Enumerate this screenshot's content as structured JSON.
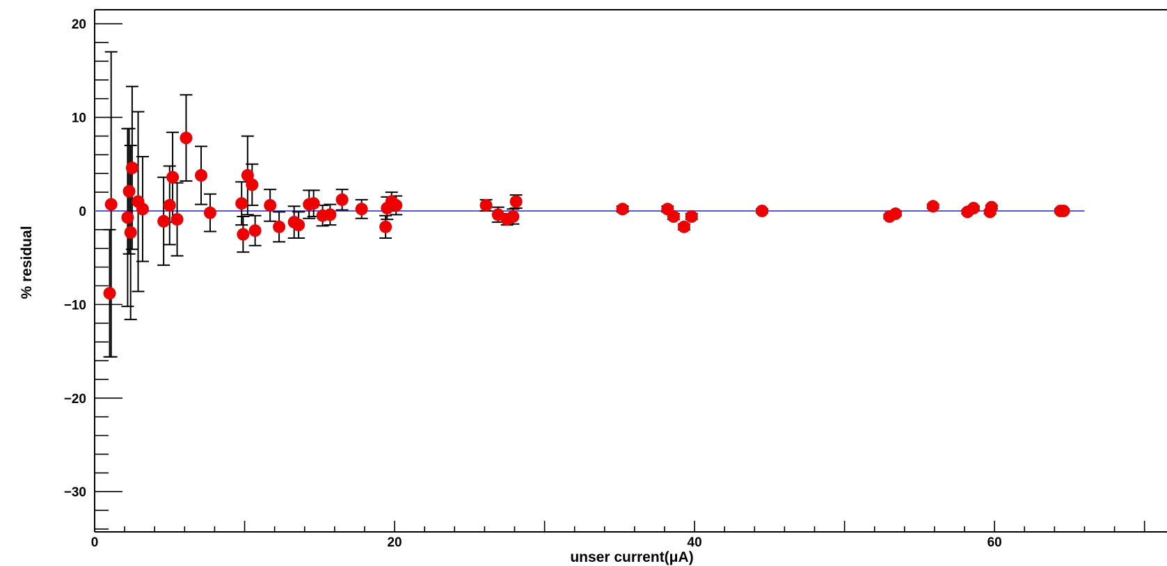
{
  "chart_data": {
    "type": "scatter",
    "title": "",
    "xlabel": "unser current(μA)",
    "ylabel": "% residual",
    "xlim": [
      0,
      71.5
    ],
    "ylim": [
      -34.3,
      21.5
    ],
    "x_ticks": [
      0,
      20,
      40,
      60
    ],
    "y_ticks": [
      20,
      10,
      0,
      -10,
      -20,
      -30
    ],
    "x_tick_labels": [
      "0",
      "20",
      "40",
      "60"
    ],
    "y_tick_labels": [
      "20",
      "10",
      "0",
      "−10",
      "−20",
      "−30"
    ],
    "grid": false,
    "legend": "none",
    "reference_line": {
      "y": 0,
      "x_range": [
        0,
        66
      ],
      "color": "#5555ee"
    },
    "colors": {
      "marker": "#ee0000",
      "error_bar": "#000000",
      "axis": "#000000"
    },
    "series": [
      {
        "points": [
          {
            "x": 1.0,
            "y": -8.8,
            "err": 6.8
          },
          {
            "x": 1.1,
            "y": 0.7,
            "err": 16.3
          },
          {
            "x": 2.2,
            "y": -0.7,
            "err": 9.5
          },
          {
            "x": 2.3,
            "y": 2.1,
            "err": 6.7
          },
          {
            "x": 2.4,
            "y": -2.3,
            "err": 9.3
          },
          {
            "x": 2.5,
            "y": 4.6,
            "err": 8.7
          },
          {
            "x": 2.9,
            "y": 1.0,
            "err": 9.6
          },
          {
            "x": 3.2,
            "y": 0.2,
            "err": 5.6
          },
          {
            "x": 4.6,
            "y": -1.1,
            "err": 4.7
          },
          {
            "x": 5.0,
            "y": 0.6,
            "err": 4.2
          },
          {
            "x": 5.2,
            "y": 3.6,
            "err": 4.8
          },
          {
            "x": 5.5,
            "y": -0.9,
            "err": 3.9
          },
          {
            "x": 6.1,
            "y": 7.8,
            "err": 4.6
          },
          {
            "x": 7.1,
            "y": 3.8,
            "err": 3.1
          },
          {
            "x": 7.7,
            "y": -0.2,
            "err": 2.0
          },
          {
            "x": 9.8,
            "y": 0.8,
            "err": 2.3
          },
          {
            "x": 9.9,
            "y": -2.5,
            "err": 1.9
          },
          {
            "x": 10.2,
            "y": 3.8,
            "err": 4.2
          },
          {
            "x": 10.5,
            "y": 2.8,
            "err": 2.2
          },
          {
            "x": 10.7,
            "y": -2.1,
            "err": 1.6
          },
          {
            "x": 11.7,
            "y": 0.6,
            "err": 1.7
          },
          {
            "x": 12.3,
            "y": -1.7,
            "err": 1.6
          },
          {
            "x": 13.3,
            "y": -1.2,
            "err": 1.7
          },
          {
            "x": 13.6,
            "y": -1.5,
            "err": 1.4
          },
          {
            "x": 14.3,
            "y": 0.7,
            "err": 1.5
          },
          {
            "x": 14.6,
            "y": 0.8,
            "err": 1.4
          },
          {
            "x": 15.2,
            "y": -0.5,
            "err": 1.1
          },
          {
            "x": 15.7,
            "y": -0.4,
            "err": 1.1
          },
          {
            "x": 16.5,
            "y": 1.2,
            "err": 1.1
          },
          {
            "x": 17.8,
            "y": 0.2,
            "err": 1.0
          },
          {
            "x": 19.4,
            "y": -1.7,
            "err": 1.2
          },
          {
            "x": 19.5,
            "y": 0.3,
            "err": 1.2
          },
          {
            "x": 19.8,
            "y": 1.0,
            "err": 1.0
          },
          {
            "x": 20.1,
            "y": 0.6,
            "err": 1.0
          },
          {
            "x": 26.1,
            "y": 0.6,
            "err": 0.6
          },
          {
            "x": 26.9,
            "y": -0.4,
            "err": 0.8
          },
          {
            "x": 27.5,
            "y": -0.9,
            "err": 0.6
          },
          {
            "x": 27.9,
            "y": -0.6,
            "err": 0.8
          },
          {
            "x": 28.1,
            "y": 1.0,
            "err": 0.7
          },
          {
            "x": 35.2,
            "y": 0.2,
            "err": 0.3
          },
          {
            "x": 38.2,
            "y": 0.2,
            "err": 0.3
          },
          {
            "x": 38.6,
            "y": -0.6,
            "err": 0.3
          },
          {
            "x": 39.3,
            "y": -1.7,
            "err": 0.3
          },
          {
            "x": 39.8,
            "y": -0.6,
            "err": 0.3
          },
          {
            "x": 44.5,
            "y": 0.0,
            "err": 0.2
          },
          {
            "x": 53.0,
            "y": -0.6,
            "err": 0.2
          },
          {
            "x": 53.4,
            "y": -0.3,
            "err": 0.2
          },
          {
            "x": 55.9,
            "y": 0.5,
            "err": 0.2
          },
          {
            "x": 58.2,
            "y": -0.1,
            "err": 0.2
          },
          {
            "x": 58.6,
            "y": 0.3,
            "err": 0.2
          },
          {
            "x": 59.7,
            "y": -0.1,
            "err": 0.2
          },
          {
            "x": 59.8,
            "y": 0.4,
            "err": 0.2
          },
          {
            "x": 64.4,
            "y": 0.0,
            "err": 0.2
          },
          {
            "x": 64.6,
            "y": 0.0,
            "err": 0.2
          }
        ]
      }
    ]
  }
}
